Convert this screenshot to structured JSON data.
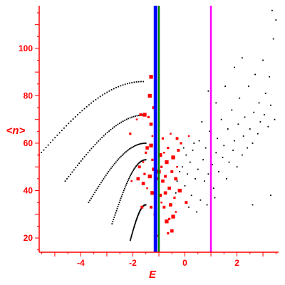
{
  "chart_data": {
    "type": "scatter",
    "xlabel": "E",
    "ylabel": "<n>",
    "xlim": [
      -5.6,
      3.6
    ],
    "ylim": [
      14,
      118
    ],
    "xticks": [
      -4,
      -2,
      0,
      2
    ],
    "yticks": [
      20,
      40,
      60,
      80,
      100
    ],
    "xtick_labels": [
      "-4",
      "-2",
      "0",
      "2"
    ],
    "ytick_labels": [
      "20",
      "40",
      "60",
      "80",
      "100"
    ],
    "grid": false,
    "axis_color": "#ff0000",
    "vertical_lines": [
      {
        "x": -1.13,
        "color": "#0000ff",
        "width_class": "thick"
      },
      {
        "x": -1.0,
        "color": "#008000",
        "width_class": "medium"
      },
      {
        "x": 1.0,
        "color": "#ff00ff",
        "width_class": "medium"
      }
    ],
    "curves_black": [
      {
        "x_start": -5.6,
        "x_end": -1.6,
        "y_start": 55,
        "y_peak": 86
      },
      {
        "x_start": -4.6,
        "x_end": -1.5,
        "y_start": 44,
        "y_peak": 72
      },
      {
        "x_start": -3.7,
        "x_end": -1.5,
        "y_start": 35,
        "y_peak": 60
      },
      {
        "x_start": -2.8,
        "x_end": -1.5,
        "y_start": 26,
        "y_peak": 53
      },
      {
        "x_start": -2.1,
        "x_end": -1.5,
        "y_start": 19,
        "y_peak": 34
      }
    ],
    "series": [
      {
        "color": "#000000",
        "points": [
          [
            -0.35,
            39
          ],
          [
            -0.3,
            44
          ],
          [
            -0.2,
            48
          ],
          [
            -0.1,
            50
          ],
          [
            0.0,
            42
          ],
          [
            0.05,
            55
          ],
          [
            0.1,
            47
          ],
          [
            0.2,
            52
          ],
          [
            0.25,
            38
          ],
          [
            0.3,
            57
          ],
          [
            0.4,
            45
          ],
          [
            0.5,
            49
          ],
          [
            0.55,
            61
          ],
          [
            0.6,
            36
          ],
          [
            0.7,
            53
          ],
          [
            0.75,
            44
          ],
          [
            0.8,
            58
          ],
          [
            0.9,
            47
          ],
          [
            0.95,
            65
          ],
          [
            1.05,
            51
          ],
          [
            1.1,
            41
          ],
          [
            1.2,
            56
          ],
          [
            1.25,
            62
          ],
          [
            1.3,
            48
          ],
          [
            1.4,
            70
          ],
          [
            1.45,
            54
          ],
          [
            1.5,
            59
          ],
          [
            1.6,
            45
          ],
          [
            1.65,
            66
          ],
          [
            1.7,
            52
          ],
          [
            1.8,
            74
          ],
          [
            1.85,
            57
          ],
          [
            1.9,
            61
          ],
          [
            2.0,
            50
          ],
          [
            2.05,
            68
          ],
          [
            2.1,
            79
          ],
          [
            2.2,
            55
          ],
          [
            2.25,
            63
          ],
          [
            2.3,
            71
          ],
          [
            2.4,
            58
          ],
          [
            2.45,
            84
          ],
          [
            2.5,
            66
          ],
          [
            2.6,
            60
          ],
          [
            2.65,
            73
          ],
          [
            2.7,
            89
          ],
          [
            2.8,
            64
          ],
          [
            2.85,
            77
          ],
          [
            2.9,
            69
          ],
          [
            3.0,
            95
          ],
          [
            3.05,
            72
          ],
          [
            3.1,
            81
          ],
          [
            3.2,
            67
          ],
          [
            3.25,
            88
          ],
          [
            3.3,
            76
          ],
          [
            3.4,
            104
          ],
          [
            3.45,
            70
          ],
          [
            3.5,
            112
          ],
          [
            3.35,
            116
          ],
          [
            0.15,
            33
          ],
          [
            0.45,
            31
          ],
          [
            0.85,
            34
          ],
          [
            1.15,
            37
          ],
          [
            2.6,
            34
          ],
          [
            3.3,
            38
          ],
          [
            0.9,
            82
          ],
          [
            1.2,
            77
          ],
          [
            1.9,
            92
          ],
          [
            2.2,
            96
          ],
          [
            0.35,
            60
          ],
          [
            -0.05,
            58
          ],
          [
            0.65,
            69
          ],
          [
            1.55,
            84
          ]
        ]
      },
      {
        "color": "#ff0000",
        "points": [
          [
            -1.85,
            70
          ],
          [
            -1.7,
            72
          ],
          [
            -1.55,
            72
          ],
          [
            -1.4,
            71
          ],
          [
            -1.3,
            68
          ],
          [
            -1.25,
            63
          ],
          [
            -1.2,
            75
          ],
          [
            -1.35,
            80
          ],
          [
            -1.5,
            56
          ],
          [
            -1.45,
            58
          ],
          [
            -1.6,
            52
          ],
          [
            -1.75,
            50
          ],
          [
            -1.3,
            59
          ],
          [
            -1.25,
            53
          ],
          [
            -1.2,
            49
          ],
          [
            -1.1,
            47
          ],
          [
            -1.05,
            45
          ],
          [
            -1.0,
            48
          ],
          [
            -0.9,
            50
          ],
          [
            -0.85,
            44
          ],
          [
            -0.8,
            56
          ],
          [
            -0.75,
            46
          ],
          [
            -0.7,
            52
          ],
          [
            -0.65,
            58
          ],
          [
            -0.6,
            41
          ],
          [
            -0.55,
            64
          ],
          [
            -0.5,
            48
          ],
          [
            -0.45,
            54
          ],
          [
            -0.4,
            37
          ],
          [
            -0.35,
            45
          ],
          [
            -0.3,
            50
          ],
          [
            -0.25,
            57
          ],
          [
            -0.2,
            40
          ],
          [
            -0.15,
            60
          ],
          [
            -1.6,
            43
          ],
          [
            -1.45,
            41
          ],
          [
            -1.3,
            33
          ],
          [
            -1.25,
            39
          ],
          [
            -1.15,
            43
          ],
          [
            -0.95,
            38
          ],
          [
            -0.9,
            35
          ],
          [
            -0.8,
            33
          ],
          [
            -0.7,
            27
          ],
          [
            -0.65,
            22
          ],
          [
            -0.5,
            23
          ],
          [
            -1.05,
            21
          ],
          [
            -1.15,
            30
          ],
          [
            -1.35,
            46
          ],
          [
            -1.55,
            47
          ],
          [
            -1.8,
            45
          ],
          [
            -2.05,
            44
          ],
          [
            -1.65,
            33
          ],
          [
            -0.95,
            55
          ],
          [
            -0.85,
            62
          ],
          [
            -0.55,
            34
          ],
          [
            -0.35,
            31
          ],
          [
            -0.3,
            62
          ],
          [
            -0.45,
            29
          ],
          [
            -0.6,
            28
          ],
          [
            -0.75,
            39
          ],
          [
            0.15,
            63
          ],
          [
            0.05,
            35
          ],
          [
            -1.3,
            88
          ],
          [
            -2.1,
            64
          ]
        ]
      }
    ]
  }
}
